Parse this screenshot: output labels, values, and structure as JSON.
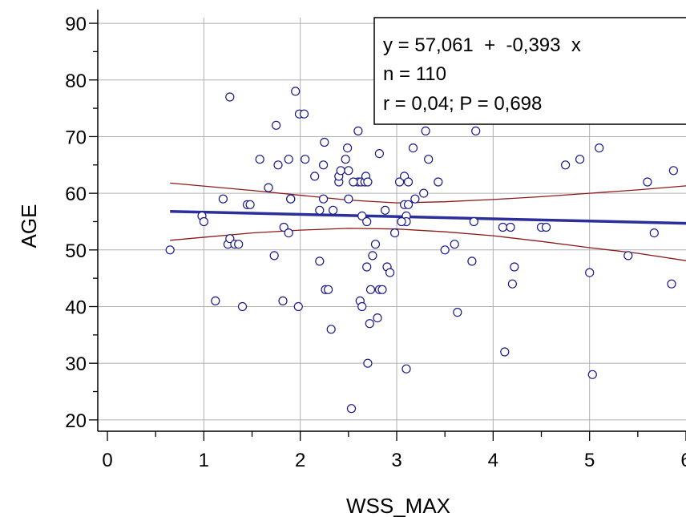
{
  "chart_data": {
    "type": "scatter",
    "xlabel": "WSS_MAX",
    "ylabel": "AGE",
    "xlim": [
      -0.1,
      6.0
    ],
    "ylim": [
      18,
      91
    ],
    "x_ticks": [
      0,
      1,
      2,
      3,
      4,
      5,
      6
    ],
    "y_ticks": [
      20,
      30,
      40,
      50,
      60,
      70,
      80,
      90
    ],
    "grid": true,
    "annotation": {
      "line1": "y = 57,061  +  -0,393  x",
      "line2": "n = 110",
      "line3": "r = 0,04; P = 0,698"
    },
    "regression": {
      "intercept": 57.061,
      "slope": -0.393,
      "color": "#2b2f99"
    },
    "confidence_color": "#8b1a1a",
    "point_color": "#1a1a8c",
    "points": [
      [
        0.65,
        50
      ],
      [
        0.98,
        56
      ],
      [
        1.0,
        55
      ],
      [
        1.12,
        41
      ],
      [
        1.2,
        59
      ],
      [
        1.25,
        51
      ],
      [
        1.27,
        52
      ],
      [
        1.27,
        77
      ],
      [
        1.32,
        51
      ],
      [
        1.36,
        51
      ],
      [
        1.4,
        40
      ],
      [
        1.45,
        58
      ],
      [
        1.48,
        58
      ],
      [
        1.58,
        66
      ],
      [
        1.67,
        61
      ],
      [
        1.73,
        49
      ],
      [
        1.75,
        72
      ],
      [
        1.77,
        65
      ],
      [
        1.82,
        41
      ],
      [
        1.83,
        54
      ],
      [
        1.88,
        53
      ],
      [
        1.88,
        66
      ],
      [
        1.9,
        59
      ],
      [
        1.95,
        78
      ],
      [
        1.98,
        40
      ],
      [
        1.99,
        74
      ],
      [
        2.04,
        74
      ],
      [
        2.05,
        66
      ],
      [
        2.15,
        63
      ],
      [
        2.2,
        57
      ],
      [
        2.2,
        48
      ],
      [
        2.24,
        65
      ],
      [
        2.24,
        59
      ],
      [
        2.25,
        69
      ],
      [
        2.26,
        43
      ],
      [
        2.29,
        43
      ],
      [
        2.32,
        36
      ],
      [
        2.34,
        57
      ],
      [
        2.4,
        62
      ],
      [
        2.4,
        63
      ],
      [
        2.42,
        64
      ],
      [
        2.47,
        66
      ],
      [
        2.49,
        68
      ],
      [
        2.5,
        64
      ],
      [
        2.5,
        59
      ],
      [
        2.53,
        22
      ],
      [
        2.6,
        71
      ],
      [
        2.6,
        62
      ],
      [
        2.62,
        41
      ],
      [
        2.63,
        62
      ],
      [
        2.64,
        40
      ],
      [
        2.64,
        56
      ],
      [
        2.67,
        62
      ],
      [
        2.68,
        63
      ],
      [
        2.69,
        55
      ],
      [
        2.69,
        47
      ],
      [
        2.7,
        30
      ],
      [
        2.72,
        37
      ],
      [
        2.73,
        43
      ],
      [
        2.75,
        49
      ],
      [
        2.78,
        51
      ],
      [
        2.8,
        38
      ],
      [
        2.82,
        67
      ],
      [
        2.82,
        43
      ],
      [
        2.88,
        57
      ],
      [
        2.9,
        47
      ],
      [
        2.93,
        46
      ],
      [
        2.98,
        53
      ],
      [
        3.03,
        62
      ],
      [
        3.08,
        58
      ],
      [
        3.08,
        63
      ],
      [
        3.1,
        56
      ],
      [
        3.1,
        55
      ],
      [
        3.12,
        62
      ],
      [
        3.12,
        58
      ],
      [
        3.17,
        68
      ],
      [
        3.19,
        59
      ],
      [
        3.28,
        60
      ],
      [
        3.3,
        71
      ],
      [
        3.33,
        66
      ],
      [
        3.43,
        62
      ],
      [
        3.5,
        50
      ],
      [
        3.6,
        51
      ],
      [
        3.63,
        39
      ],
      [
        3.78,
        48
      ],
      [
        3.8,
        55
      ],
      [
        3.82,
        71
      ],
      [
        4.1,
        54
      ],
      [
        4.12,
        32
      ],
      [
        4.18,
        54
      ],
      [
        4.2,
        44
      ],
      [
        4.22,
        47
      ],
      [
        4.5,
        54
      ],
      [
        4.55,
        54
      ],
      [
        4.75,
        65
      ],
      [
        4.9,
        66
      ],
      [
        5.0,
        46
      ],
      [
        5.03,
        28
      ],
      [
        5.1,
        68
      ],
      [
        5.4,
        49
      ],
      [
        5.6,
        62
      ],
      [
        5.67,
        53
      ],
      [
        5.85,
        44
      ],
      [
        5.87,
        64
      ],
      [
        3.1,
        29
      ],
      [
        2.85,
        43
      ],
      [
        3.05,
        55
      ],
      [
        2.55,
        62
      ],
      [
        1.9,
        59
      ],
      [
        2.7,
        62
      ]
    ],
    "upper_band": [
      [
        0.65,
        61.8
      ],
      [
        1.5,
        60.5
      ],
      [
        2.5,
        58.8
      ],
      [
        3.0,
        58.3
      ],
      [
        3.5,
        58.5
      ],
      [
        4.0,
        58.9
      ],
      [
        4.5,
        59.4
      ],
      [
        5.0,
        60.0
      ],
      [
        5.5,
        60.6
      ],
      [
        6.0,
        61.3
      ]
    ],
    "lower_band": [
      [
        0.65,
        51.7
      ],
      [
        1.5,
        53.0
      ],
      [
        2.0,
        53.5
      ],
      [
        2.5,
        53.8
      ],
      [
        3.0,
        53.7
      ],
      [
        3.5,
        53.2
      ],
      [
        4.0,
        52.5
      ],
      [
        4.5,
        51.5
      ],
      [
        5.0,
        50.4
      ],
      [
        5.5,
        49.4
      ],
      [
        6.0,
        48.1
      ]
    ]
  }
}
